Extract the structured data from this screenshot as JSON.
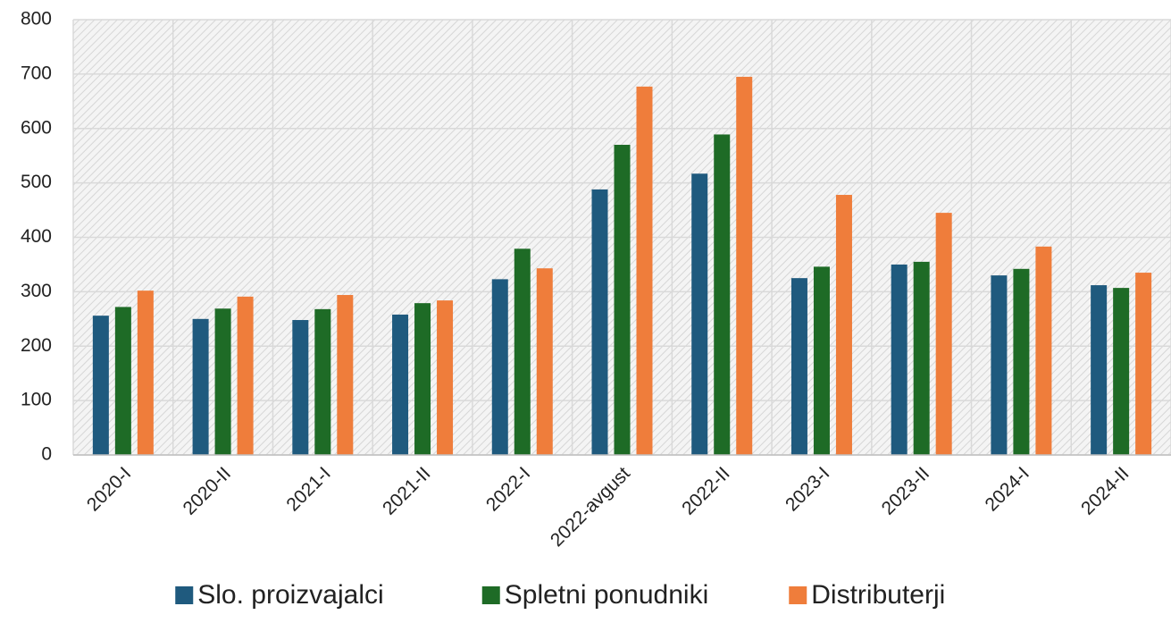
{
  "chart_data": {
    "type": "bar",
    "categories": [
      "2020-I",
      "2020-II",
      "2021-I",
      "2021-II",
      "2022-I",
      "2022-avgust",
      "2022-II",
      "2023-I",
      "2023-II",
      "2024-I",
      "2024-II"
    ],
    "series": [
      {
        "name": "Slo. proizvajalci",
        "color": "#1f5a7e",
        "values": [
          256,
          250,
          248,
          258,
          323,
          488,
          517,
          325,
          350,
          330,
          312
        ]
      },
      {
        "name": "Spletni ponudniki",
        "color": "#1e6b26",
        "values": [
          272,
          269,
          268,
          279,
          379,
          570,
          589,
          346,
          355,
          342,
          307
        ]
      },
      {
        "name": "Distributerji",
        "color": "#ef7d3b",
        "values": [
          302,
          291,
          294,
          284,
          343,
          677,
          695,
          478,
          445,
          383,
          335
        ]
      }
    ],
    "ylim": [
      0,
      800
    ],
    "yticks": [
      0,
      100,
      200,
      300,
      400,
      500,
      600,
      700,
      800
    ],
    "grid": true,
    "legend": "bottom"
  }
}
